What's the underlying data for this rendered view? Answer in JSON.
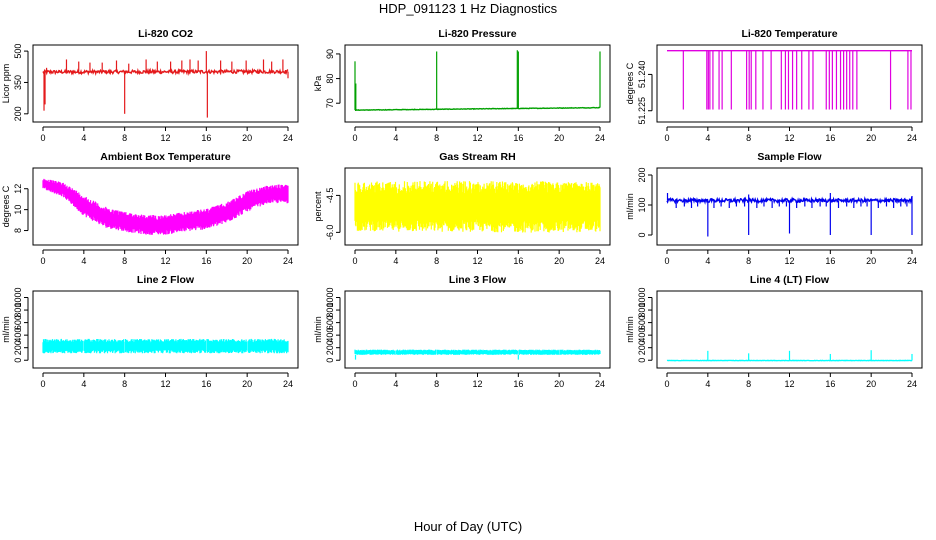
{
  "figure": {
    "title": "HDP_091123  1 Hz Diagnostics",
    "xlabel": "Hour of Day (UTC)"
  },
  "chart_data": [
    {
      "type": "line",
      "title": "Li-820 CO2",
      "ylabel": "Licor ppm",
      "color": "#e41a1c",
      "xlim": [
        0,
        24
      ],
      "ylim": [
        180,
        510
      ],
      "xticks": [
        0,
        4,
        8,
        12,
        16,
        20,
        24
      ],
      "yticks": [
        200,
        350,
        500
      ],
      "baseline": [
        [
          0,
          400
        ],
        [
          24,
          402
        ]
      ],
      "noise": 8,
      "spikes_up": [
        [
          0.35,
          420
        ],
        [
          2.3,
          460
        ],
        [
          3.5,
          450
        ],
        [
          4.6,
          445
        ],
        [
          5.8,
          445
        ],
        [
          7.2,
          455
        ],
        [
          8.4,
          440
        ],
        [
          10.1,
          460
        ],
        [
          11.2,
          450
        ],
        [
          12.5,
          450
        ],
        [
          13.6,
          455
        ],
        [
          14.4,
          460
        ],
        [
          15.2,
          455
        ],
        [
          16.0,
          500
        ],
        [
          17.4,
          455
        ],
        [
          18.5,
          450
        ],
        [
          19.9,
          455
        ],
        [
          21.6,
          460
        ],
        [
          22.4,
          450
        ],
        [
          23.5,
          460
        ]
      ],
      "spikes_down": [
        [
          0.1,
          215
        ],
        [
          0.2,
          245
        ],
        [
          8.0,
          200
        ],
        [
          16.1,
          182
        ],
        [
          24.0,
          370
        ]
      ]
    },
    {
      "type": "line",
      "title": "Li-820 Pressure",
      "ylabel": "kPa",
      "color": "#00a000",
      "xlim": [
        0,
        24
      ],
      "ylim": [
        64,
        92
      ],
      "xticks": [
        0,
        4,
        8,
        12,
        16,
        20,
        24
      ],
      "yticks": [
        70,
        80,
        90
      ],
      "baseline": [
        [
          0,
          67.2
        ],
        [
          24,
          68.2
        ]
      ],
      "noise": 0.1,
      "spikes_up": [
        [
          0.0,
          87
        ],
        [
          0.08,
          78
        ],
        [
          8.0,
          91
        ],
        [
          15.9,
          91.5
        ],
        [
          16.0,
          91
        ],
        [
          24.0,
          91
        ]
      ],
      "spikes_down": []
    },
    {
      "type": "line",
      "title": "Li-820 Temperature",
      "ylabel": "degrees C",
      "color": "#e000e0",
      "xlim": [
        0,
        24
      ],
      "ylim": [
        51.222,
        51.2505
      ],
      "xticks": [
        0,
        4,
        8,
        12,
        16,
        20,
        24
      ],
      "yticks": [
        51.225,
        51.24
      ],
      "ytick_labels": [
        "51.225",
        "51.240"
      ],
      "baseline": [
        [
          0,
          51.2498
        ],
        [
          24,
          51.2498
        ]
      ],
      "noise": 0,
      "spikes_up": [],
      "spikes_down": [
        [
          1.6,
          51.2255
        ],
        [
          3.9,
          51.2255
        ],
        [
          4.05,
          51.2255
        ],
        [
          4.2,
          51.2255
        ],
        [
          4.5,
          51.2255
        ],
        [
          5.1,
          51.2255
        ],
        [
          5.4,
          51.2255
        ],
        [
          6.3,
          51.2255
        ],
        [
          7.8,
          51.2255
        ],
        [
          8.05,
          51.2255
        ],
        [
          8.25,
          51.2255
        ],
        [
          8.7,
          51.2255
        ],
        [
          9.4,
          51.2255
        ],
        [
          10.2,
          51.2255
        ],
        [
          11.2,
          51.2255
        ],
        [
          11.6,
          51.2255
        ],
        [
          11.9,
          51.2255
        ],
        [
          12.3,
          51.2255
        ],
        [
          12.7,
          51.2255
        ],
        [
          13.2,
          51.2255
        ],
        [
          13.9,
          51.2255
        ],
        [
          14.3,
          51.2255
        ],
        [
          15.6,
          51.2255
        ],
        [
          15.9,
          51.2255
        ],
        [
          16.2,
          51.2255
        ],
        [
          16.6,
          51.2255
        ],
        [
          17.0,
          51.2255
        ],
        [
          17.3,
          51.2255
        ],
        [
          17.6,
          51.2255
        ],
        [
          17.9,
          51.2255
        ],
        [
          18.2,
          51.2255
        ],
        [
          18.6,
          51.2255
        ],
        [
          21.9,
          51.2255
        ],
        [
          23.6,
          51.2255
        ],
        [
          23.9,
          51.2255
        ]
      ]
    },
    {
      "type": "area",
      "title": "Ambient Box Temperature",
      "ylabel": "degrees C",
      "color": "#ff00ff",
      "xlim": [
        0,
        24
      ],
      "ylim": [
        7,
        13.6
      ],
      "xticks": [
        0,
        4,
        8,
        12,
        16,
        20,
        24
      ],
      "yticks": [
        8,
        10,
        12
      ],
      "band": [
        [
          0,
          12.0,
          13.0
        ],
        [
          2,
          11.2,
          12.6
        ],
        [
          4,
          9.4,
          11.4
        ],
        [
          6,
          8.3,
          10.3
        ],
        [
          8,
          7.9,
          9.8
        ],
        [
          10,
          7.6,
          9.5
        ],
        [
          12,
          7.6,
          9.5
        ],
        [
          14,
          7.9,
          9.8
        ],
        [
          16,
          8.1,
          10.1
        ],
        [
          18,
          8.7,
          10.7
        ],
        [
          20,
          9.8,
          11.8
        ],
        [
          22,
          10.6,
          12.3
        ],
        [
          24,
          10.6,
          12.5
        ]
      ]
    },
    {
      "type": "area",
      "title": "Gas Stream RH",
      "ylabel": "percent",
      "color": "#ffff00",
      "xlim": [
        0,
        24
      ],
      "ylim": [
        -6.35,
        -3.55
      ],
      "xticks": [
        0,
        4,
        8,
        12,
        16,
        20,
        24
      ],
      "yticks": [
        -6.0,
        -4.5
      ],
      "ytick_labels": [
        "-6.0",
        "-4.5"
      ],
      "band": [
        [
          0,
          -5.95,
          -3.95
        ],
        [
          6,
          -5.98,
          -3.9
        ],
        [
          12,
          -5.98,
          -3.92
        ],
        [
          18,
          -6.02,
          -3.92
        ],
        [
          24,
          -5.98,
          -3.95
        ]
      ]
    },
    {
      "type": "line",
      "title": "Sample Flow",
      "ylabel": "ml/min",
      "color": "#0000ee",
      "xlim": [
        0,
        24
      ],
      "ylim": [
        -20,
        210
      ],
      "xticks": [
        0,
        4,
        8,
        12,
        16,
        20,
        24
      ],
      "yticks": [
        0,
        100,
        200
      ],
      "baseline": [
        [
          0,
          115
        ],
        [
          24,
          115
        ]
      ],
      "noise": 6,
      "spikes_up": [
        [
          0.05,
          140
        ],
        [
          8.0,
          135
        ],
        [
          16.0,
          140
        ],
        [
          24.0,
          130
        ]
      ],
      "spikes_down": [
        [
          0.9,
          90
        ],
        [
          1.7,
          95
        ],
        [
          2.4,
          90
        ],
        [
          3.0,
          95
        ],
        [
          4.0,
          -5
        ],
        [
          4.6,
          90
        ],
        [
          5.3,
          95
        ],
        [
          6.1,
          90
        ],
        [
          6.8,
          95
        ],
        [
          7.6,
          95
        ],
        [
          8.0,
          0
        ],
        [
          8.8,
          90
        ],
        [
          9.5,
          95
        ],
        [
          10.3,
          90
        ],
        [
          11.0,
          95
        ],
        [
          11.7,
          95
        ],
        [
          12.0,
          5
        ],
        [
          12.7,
          90
        ],
        [
          13.5,
          95
        ],
        [
          14.2,
          90
        ],
        [
          15.0,
          95
        ],
        [
          15.6,
          95
        ],
        [
          16.0,
          0
        ],
        [
          16.8,
          90
        ],
        [
          17.6,
          95
        ],
        [
          18.3,
          90
        ],
        [
          19.0,
          95
        ],
        [
          19.6,
          95
        ],
        [
          20.0,
          0
        ],
        [
          20.7,
          90
        ],
        [
          21.5,
          95
        ],
        [
          22.2,
          90
        ],
        [
          22.9,
          95
        ],
        [
          23.5,
          95
        ],
        [
          24.0,
          0
        ]
      ]
    },
    {
      "type": "area",
      "title": "Line 2 Flow",
      "ylabel": "ml/min",
      "color": "#00ffff",
      "xlim": [
        0,
        24
      ],
      "ylim": [
        -60,
        1040
      ],
      "xticks": [
        0,
        4,
        8,
        12,
        16,
        20,
        24
      ],
      "yticks": [
        0,
        200,
        400,
        600,
        800,
        1000
      ],
      "band": [
        [
          0,
          110,
          340
        ],
        [
          24,
          110,
          340
        ]
      ],
      "gaps": [
        4.0,
        8.0,
        12.0,
        16.0,
        20.0
      ]
    },
    {
      "type": "area",
      "title": "Line 3 Flow",
      "ylabel": "ml/min",
      "color": "#00ffff",
      "xlim": [
        0,
        24
      ],
      "ylim": [
        -60,
        1040
      ],
      "xticks": [
        0,
        4,
        8,
        12,
        16,
        20,
        24
      ],
      "yticks": [
        0,
        200,
        400,
        600,
        800,
        1000
      ],
      "band": [
        [
          0,
          85,
          170
        ],
        [
          24,
          85,
          170
        ]
      ],
      "gaps": [
        4.0,
        8.0,
        12.0,
        16.0,
        20.0
      ],
      "spikes_down": [
        [
          0.05,
          10
        ],
        [
          16.0,
          10
        ]
      ]
    },
    {
      "type": "line",
      "title": "Line 4 (LT) Flow",
      "ylabel": "ml/min",
      "color": "#00ffff",
      "xlim": [
        0,
        24
      ],
      "ylim": [
        -60,
        1040
      ],
      "xticks": [
        0,
        4,
        8,
        12,
        16,
        20,
        24
      ],
      "yticks": [
        0,
        200,
        400,
        600,
        800,
        1000
      ],
      "baseline": [
        [
          0,
          -5
        ],
        [
          24,
          -5
        ]
      ],
      "noise": 3,
      "spikes_up": [
        [
          4.0,
          150
        ],
        [
          8.0,
          110
        ],
        [
          12.0,
          150
        ],
        [
          16.0,
          100
        ],
        [
          20.0,
          160
        ],
        [
          24.0,
          100
        ]
      ],
      "spikes_down": []
    }
  ]
}
